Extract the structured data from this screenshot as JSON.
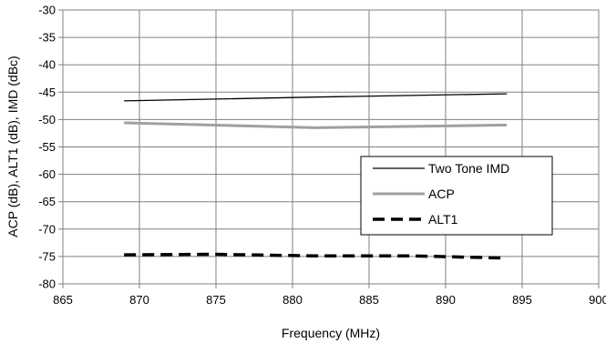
{
  "chart_data": {
    "type": "line",
    "title": "",
    "xlabel": "Frequency (MHz)",
    "ylabel": "ACP (dB), ALT1 (dB), IMD (dBc)",
    "xlim": [
      865,
      900
    ],
    "ylim": [
      -80,
      -30
    ],
    "xticks": [
      865,
      870,
      875,
      880,
      885,
      890,
      895,
      900
    ],
    "yticks": [
      -30,
      -35,
      -40,
      -45,
      -50,
      -55,
      -60,
      -65,
      -70,
      -75,
      -80
    ],
    "grid": true,
    "legend_position": "right",
    "series": [
      {
        "name": "Two Tone IMD",
        "color": "#000000",
        "style": "solid-thin",
        "x": [
          869,
          881.5,
          894
        ],
        "y": [
          -46.6,
          -45.9,
          -45.3
        ]
      },
      {
        "name": "ACP",
        "color": "#a0a0a0",
        "style": "solid-thick",
        "x": [
          869,
          881.5,
          894
        ],
        "y": [
          -50.6,
          -51.5,
          -51.0
        ]
      },
      {
        "name": "ALT1",
        "color": "#000000",
        "style": "dashed-thick",
        "x": [
          869,
          875,
          881.5,
          888,
          894
        ],
        "y": [
          -74.7,
          -74.6,
          -74.9,
          -74.9,
          -75.3
        ]
      }
    ]
  }
}
